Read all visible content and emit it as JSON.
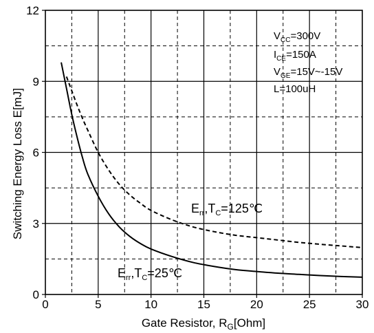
{
  "chart_data": {
    "type": "line",
    "xlabel": "Gate Resistor, R",
    "xlabel_sub": "G",
    "xlabel_unit": "[Ohm]",
    "ylabel": "Switching Energy Loss E[mJ]",
    "xlim": [
      0,
      30
    ],
    "ylim": [
      0,
      12
    ],
    "x_ticks": [
      "0",
      "5",
      "10",
      "15",
      "20",
      "25",
      "30"
    ],
    "y_ticks": [
      "0",
      "3",
      "6",
      "9",
      "12"
    ],
    "grid": true,
    "series": [
      {
        "name": "Err, TC=125℃",
        "line_style": "dashed",
        "x": [
          2,
          2.5,
          3,
          3.5,
          4,
          5,
          6,
          7,
          8,
          9,
          10,
          12,
          14,
          16,
          18,
          20,
          22,
          24,
          26,
          28,
          30
        ],
        "y": [
          9.2,
          8.6,
          8.0,
          7.45,
          6.95,
          6.0,
          5.25,
          4.65,
          4.2,
          3.85,
          3.55,
          3.15,
          2.85,
          2.65,
          2.5,
          2.4,
          2.3,
          2.2,
          2.12,
          2.05,
          1.98
        ]
      },
      {
        "name": "Err, TC=25℃",
        "line_style": "solid",
        "x": [
          1.5,
          2,
          2.5,
          3,
          3.5,
          4,
          5,
          6,
          7,
          8,
          9,
          10,
          12,
          14,
          16,
          18,
          20,
          22,
          24,
          26,
          28,
          30
        ],
        "y": [
          9.8,
          8.7,
          7.6,
          6.65,
          5.8,
          5.1,
          4.15,
          3.4,
          2.85,
          2.45,
          2.15,
          1.92,
          1.6,
          1.35,
          1.18,
          1.05,
          0.97,
          0.9,
          0.85,
          0.8,
          0.76,
          0.73
        ]
      }
    ],
    "annotations": [
      {
        "main": "E",
        "sub1": "rr",
        "mid": ",T",
        "sub2": "C",
        "tail": "=125℃"
      },
      {
        "main": "E",
        "sub1": "rr",
        "mid": ",T",
        "sub2": "C",
        "tail": "=25℃"
      }
    ],
    "conditions": [
      {
        "main": "V",
        "sub": "CC",
        "tail": "=300V"
      },
      {
        "main": "I",
        "sub": "CE",
        "tail": "=150A"
      },
      {
        "main": "V",
        "sub": "GE",
        "tail": "=15V~-15V"
      },
      {
        "main": "L=100uH",
        "sub": "",
        "tail": ""
      }
    ]
  }
}
